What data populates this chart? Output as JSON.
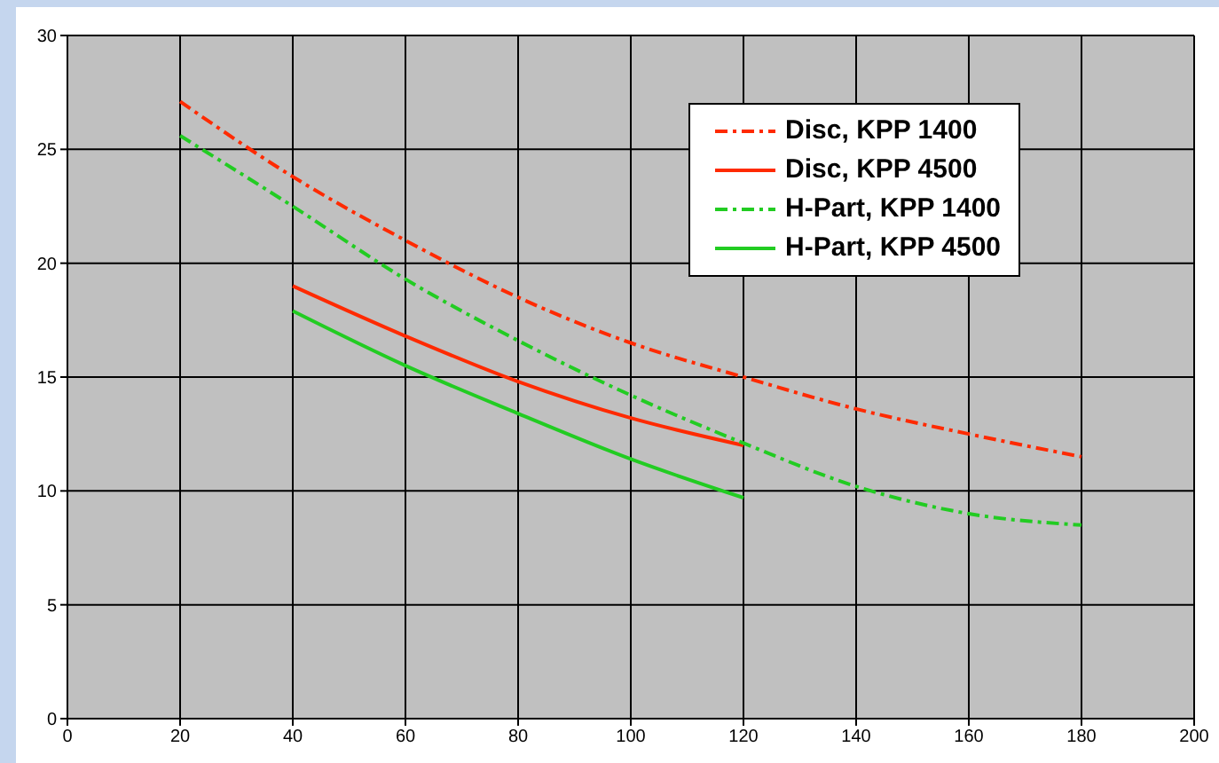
{
  "chart_data": {
    "type": "line",
    "x": [
      20,
      40,
      60,
      80,
      100,
      120,
      140,
      160,
      180
    ],
    "series": [
      {
        "name": "Disc, KPP 1400",
        "color": "#ff2a00",
        "line_style": "dashdot",
        "values": [
          27.1,
          23.8,
          21.0,
          18.5,
          16.5,
          15.0,
          13.6,
          12.5,
          11.5
        ]
      },
      {
        "name": "Disc, KPP 4500",
        "color": "#ff2a00",
        "line_style": "solid",
        "values": [
          null,
          19.0,
          16.8,
          14.8,
          13.2,
          12.0,
          null,
          null,
          null
        ]
      },
      {
        "name": "H-Part, KPP 1400",
        "color": "#22cc22",
        "line_style": "dashdot",
        "values": [
          25.6,
          22.5,
          19.3,
          16.6,
          14.2,
          12.1,
          10.2,
          9.0,
          8.5
        ]
      },
      {
        "name": "H-Part, KPP 4500",
        "color": "#22cc22",
        "line_style": "solid",
        "values": [
          null,
          17.9,
          15.5,
          13.4,
          11.4,
          9.7,
          null,
          null,
          null
        ]
      }
    ],
    "xlim": [
      0,
      200
    ],
    "xticks": [
      0,
      20,
      40,
      60,
      80,
      100,
      120,
      140,
      160,
      180,
      200
    ],
    "ylim": [
      0,
      30
    ],
    "yticks": [
      0,
      5,
      10,
      15,
      20,
      25,
      30
    ],
    "grid": true,
    "legend": "top right",
    "marker": "none"
  }
}
